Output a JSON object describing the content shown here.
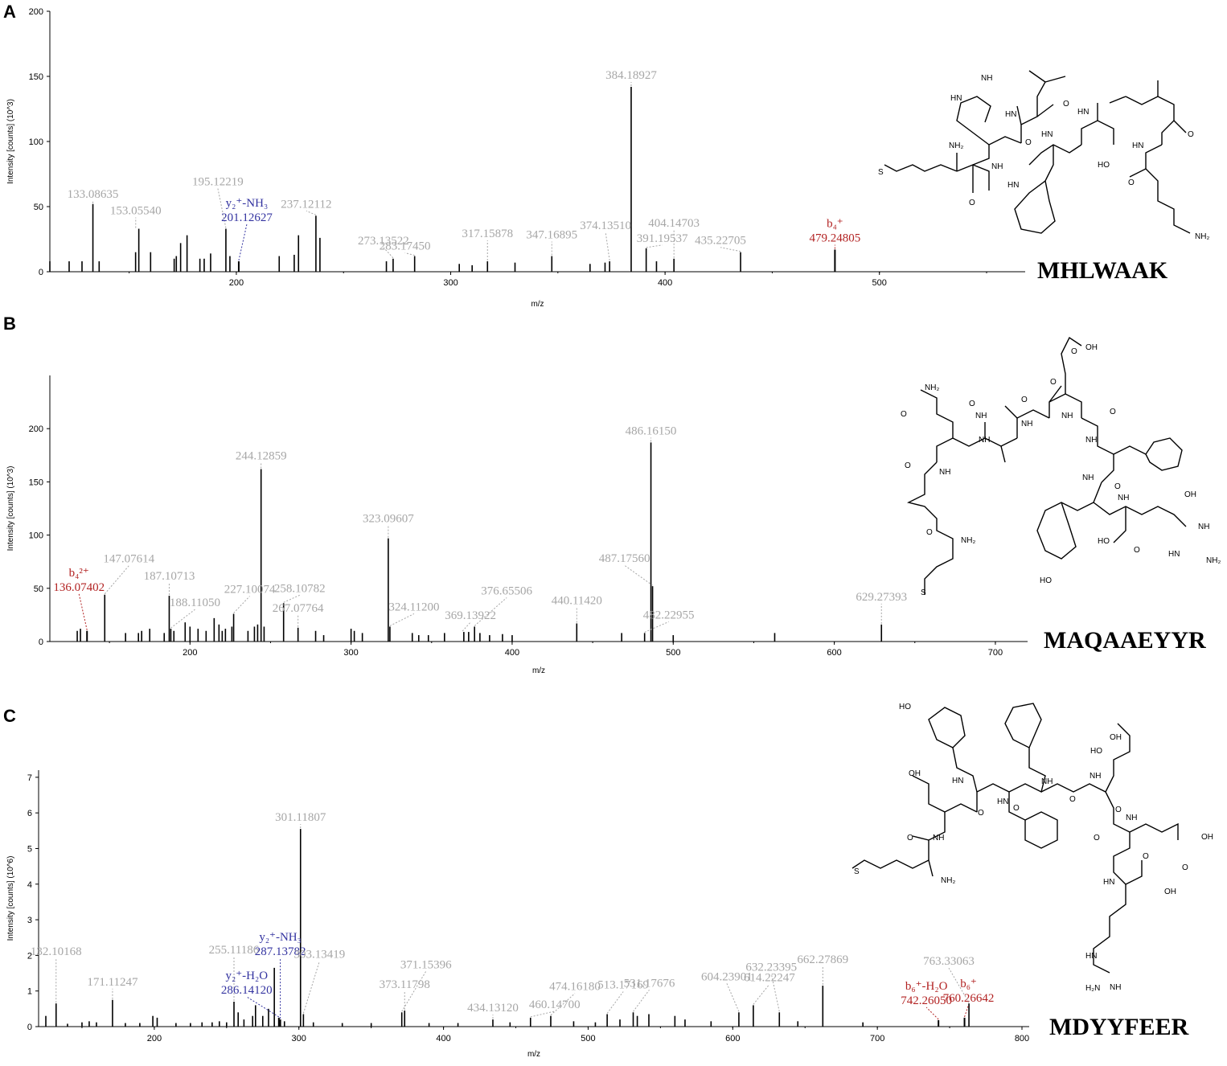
{
  "chart_data": [
    {
      "type": "bar",
      "panel": "A",
      "peptide": "MHLWAAK",
      "ylabel": "Intensity [counts] (10^3)",
      "xlabel": "m/z",
      "xlim": [
        113,
        568
      ],
      "ylim": [
        0,
        200
      ],
      "xticks": [
        "200",
        "300",
        "400",
        "500"
      ],
      "yticks": [
        "0",
        "50",
        "100",
        "150",
        "200"
      ],
      "peaks": [
        [
          113,
          8
        ],
        [
          122,
          8
        ],
        [
          128,
          8
        ],
        [
          133.08635,
          52
        ],
        [
          136,
          8
        ],
        [
          153,
          15
        ],
        [
          154.5,
          33
        ],
        [
          160,
          15
        ],
        [
          171,
          10
        ],
        [
          172,
          12
        ],
        [
          174,
          22
        ],
        [
          177,
          28
        ],
        [
          183,
          10
        ],
        [
          185,
          10
        ],
        [
          188,
          14
        ],
        [
          195.12219,
          33
        ],
        [
          197,
          12
        ],
        [
          201.12627,
          8
        ],
        [
          220,
          12
        ],
        [
          227,
          13
        ],
        [
          229,
          28
        ],
        [
          237.12112,
          43
        ],
        [
          239,
          26
        ],
        [
          270,
          8
        ],
        [
          273.13522,
          10
        ],
        [
          283.1745,
          12
        ],
        [
          304,
          6
        ],
        [
          310,
          5
        ],
        [
          317.15878,
          8
        ],
        [
          330,
          7
        ],
        [
          347.16895,
          12
        ],
        [
          365,
          6
        ],
        [
          372,
          7
        ],
        [
          374.1351,
          8
        ],
        [
          384.18927,
          142
        ],
        [
          391.19537,
          18
        ],
        [
          396,
          8
        ],
        [
          404.14703,
          10
        ],
        [
          435.22705,
          15
        ],
        [
          479.24805,
          17
        ]
      ],
      "annotations": [
        {
          "x": 133.08635,
          "y": 52,
          "text": "133.08635",
          "color": "#a6a6a6"
        },
        {
          "x": 153.0554,
          "y": 33,
          "text": "153.05540",
          "color": "#a6a6a6"
        },
        {
          "x": 195.12219,
          "y": 33,
          "text": "195.12219",
          "color": "#a6a6a6"
        },
        {
          "x": 201.12627,
          "y": 8,
          "text": "201.12627",
          "sub": "y₂⁺-NH₃",
          "color": "#3333a0"
        },
        {
          "x": 237.12112,
          "y": 43,
          "text": "237.12112",
          "color": "#a6a6a6"
        },
        {
          "x": 273.13522,
          "y": 10,
          "text": "273.13522",
          "color": "#a6a6a6"
        },
        {
          "x": 283.1745,
          "y": 12,
          "text": "283.17450",
          "color": "#a6a6a6"
        },
        {
          "x": 317.15878,
          "y": 8,
          "text": "317.15878",
          "color": "#a6a6a6"
        },
        {
          "x": 347.16895,
          "y": 12,
          "text": "347.16895",
          "color": "#a6a6a6"
        },
        {
          "x": 374.1351,
          "y": 8,
          "text": "374.13510",
          "color": "#a6a6a6"
        },
        {
          "x": 384.18927,
          "y": 142,
          "text": "384.18927",
          "color": "#a6a6a6"
        },
        {
          "x": 391.19537,
          "y": 18,
          "text": "391.19537",
          "color": "#a6a6a6"
        },
        {
          "x": 404.14703,
          "y": 10,
          "text": "404.14703",
          "color": "#a6a6a6"
        },
        {
          "x": 435.22705,
          "y": 15,
          "text": "435.22705",
          "color": "#a6a6a6"
        },
        {
          "x": 479.24805,
          "y": 17,
          "text": "479.24805",
          "sub": "b₄⁺",
          "color": "#b22222"
        }
      ]
    },
    {
      "type": "bar",
      "panel": "B",
      "peptide": "MAQAAEYYR",
      "ylabel": "Intensity [counts] (10^3)",
      "xlabel": "m/z",
      "xlim": [
        113,
        720
      ],
      "ylim": [
        0,
        250
      ],
      "xticks": [
        "200",
        "300",
        "400",
        "500",
        "600",
        "700"
      ],
      "yticks": [
        "0",
        "50",
        "100",
        "150",
        "200"
      ],
      "peaks": [
        [
          130,
          10
        ],
        [
          132,
          12
        ],
        [
          136.07402,
          10
        ],
        [
          147.07614,
          44
        ],
        [
          160,
          8
        ],
        [
          168,
          8
        ],
        [
          170,
          10
        ],
        [
          175,
          12
        ],
        [
          184,
          8
        ],
        [
          187.10713,
          43
        ],
        [
          188.1105,
          12
        ],
        [
          190,
          10
        ],
        [
          197,
          18
        ],
        [
          200,
          14
        ],
        [
          205,
          12
        ],
        [
          210,
          10
        ],
        [
          215,
          22
        ],
        [
          218,
          16
        ],
        [
          220,
          10
        ],
        [
          222,
          12
        ],
        [
          226,
          14
        ],
        [
          227.10074,
          26
        ],
        [
          236,
          10
        ],
        [
          240,
          14
        ],
        [
          242,
          16
        ],
        [
          244.12859,
          162
        ],
        [
          246,
          14
        ],
        [
          258.10782,
          36
        ],
        [
          267.07764,
          13
        ],
        [
          278,
          10
        ],
        [
          283,
          6
        ],
        [
          300,
          12
        ],
        [
          302,
          10
        ],
        [
          307,
          8
        ],
        [
          323.09607,
          97
        ],
        [
          324.112,
          14
        ],
        [
          338,
          8
        ],
        [
          342,
          6
        ],
        [
          348,
          6
        ],
        [
          358,
          8
        ],
        [
          370,
          9
        ],
        [
          373,
          9
        ],
        [
          376.65506,
          14
        ],
        [
          380,
          8
        ],
        [
          386,
          6
        ],
        [
          394,
          7
        ],
        [
          400,
          6
        ],
        [
          440.1142,
          17
        ],
        [
          468,
          8
        ],
        [
          482.22955,
          8
        ],
        [
          486.1615,
          187
        ],
        [
          487.1756,
          52
        ],
        [
          500,
          6
        ],
        [
          563,
          8
        ],
        [
          629.27393,
          16
        ]
      ],
      "annotations": [
        {
          "x": 136.07402,
          "y": 10,
          "text": "136.07402",
          "sub": "b₄²⁺",
          "color": "#b22222"
        },
        {
          "x": 147.07614,
          "y": 44,
          "text": "147.07614",
          "color": "#a6a6a6"
        },
        {
          "x": 187.10713,
          "y": 43,
          "text": "187.10713",
          "color": "#a6a6a6"
        },
        {
          "x": 188.1105,
          "y": 12,
          "text": "188.11050",
          "color": "#a6a6a6"
        },
        {
          "x": 227.10074,
          "y": 26,
          "text": "227.10074",
          "color": "#a6a6a6"
        },
        {
          "x": 244.12859,
          "y": 162,
          "text": "244.12859",
          "color": "#a6a6a6"
        },
        {
          "x": 258.10782,
          "y": 36,
          "text": "258.10782",
          "color": "#a6a6a6"
        },
        {
          "x": 267.07764,
          "y": 13,
          "text": "267.07764",
          "color": "#a6a6a6"
        },
        {
          "x": 323.09607,
          "y": 97,
          "text": "323.09607",
          "color": "#a6a6a6"
        },
        {
          "x": 324.112,
          "y": 14,
          "text": "324.11200",
          "color": "#a6a6a6"
        },
        {
          "x": 369.13922,
          "y": 9,
          "text": "369.13922",
          "color": "#a6a6a6"
        },
        {
          "x": 376.65506,
          "y": 14,
          "text": "376.65506",
          "color": "#a6a6a6"
        },
        {
          "x": 440.1142,
          "y": 17,
          "text": "440.11420",
          "color": "#a6a6a6"
        },
        {
          "x": 482.22955,
          "y": 8,
          "text": "482.22955",
          "color": "#a6a6a6"
        },
        {
          "x": 486.1615,
          "y": 187,
          "text": "486.16150",
          "color": "#a6a6a6"
        },
        {
          "x": 487.1756,
          "y": 52,
          "text": "487.17560",
          "color": "#a6a6a6"
        },
        {
          "x": 629.27393,
          "y": 16,
          "text": "629.27393",
          "color": "#a6a6a6"
        }
      ]
    },
    {
      "type": "bar",
      "panel": "C",
      "peptide": "MDYYFEER",
      "ylabel": "Intensity [counts] (10^6)",
      "xlabel": "m/z",
      "xlim": [
        120,
        805
      ],
      "ylim": [
        0,
        7.2
      ],
      "xticks": [
        "200",
        "300",
        "400",
        "500",
        "600",
        "700",
        "800"
      ],
      "yticks": [
        "0",
        "1",
        "2",
        "3",
        "4",
        "5",
        "6",
        "7"
      ],
      "peaks": [
        [
          125,
          0.3
        ],
        [
          132.10168,
          0.65
        ],
        [
          140,
          0.08
        ],
        [
          150,
          0.12
        ],
        [
          155,
          0.15
        ],
        [
          160,
          0.12
        ],
        [
          171.11247,
          0.75
        ],
        [
          180,
          0.1
        ],
        [
          190,
          0.1
        ],
        [
          199,
          0.3
        ],
        [
          202,
          0.25
        ],
        [
          215,
          0.1
        ],
        [
          225,
          0.1
        ],
        [
          233,
          0.12
        ],
        [
          240,
          0.12
        ],
        [
          245,
          0.15
        ],
        [
          250,
          0.12
        ],
        [
          255.11186,
          0.7
        ],
        [
          258,
          0.4
        ],
        [
          262,
          0.2
        ],
        [
          268,
          0.3
        ],
        [
          270,
          0.6
        ],
        [
          275,
          0.3
        ],
        [
          279,
          0.5
        ],
        [
          283,
          1.65
        ],
        [
          286.1412,
          0.25
        ],
        [
          287.13782,
          0.2
        ],
        [
          290,
          0.15
        ],
        [
          301.11807,
          5.55
        ],
        [
          303.13419,
          0.35
        ],
        [
          310,
          0.12
        ],
        [
          330,
          0.1
        ],
        [
          350,
          0.1
        ],
        [
          371.15396,
          0.4
        ],
        [
          373.11798,
          0.45
        ],
        [
          390,
          0.1
        ],
        [
          410,
          0.1
        ],
        [
          434.1312,
          0.2
        ],
        [
          446,
          0.12
        ],
        [
          460.147,
          0.25
        ],
        [
          474.1618,
          0.3
        ],
        [
          490,
          0.15
        ],
        [
          505,
          0.12
        ],
        [
          513.17169,
          0.35
        ],
        [
          522,
          0.2
        ],
        [
          531.17676,
          0.4
        ],
        [
          534,
          0.3
        ],
        [
          542,
          0.35
        ],
        [
          560,
          0.3
        ],
        [
          567,
          0.2
        ],
        [
          585,
          0.15
        ],
        [
          604.23901,
          0.4
        ],
        [
          614.22247,
          0.6
        ],
        [
          632.23395,
          0.4
        ],
        [
          645,
          0.15
        ],
        [
          662.27869,
          1.15
        ],
        [
          690,
          0.12
        ],
        [
          742.2605,
          0.18
        ],
        [
          760.26642,
          0.25
        ],
        [
          763.33063,
          0.65
        ]
      ],
      "annotations": [
        {
          "x": 132.10168,
          "y": 0.65,
          "text": "132.10168",
          "color": "#a6a6a6"
        },
        {
          "x": 171.11247,
          "y": 0.75,
          "text": "171.11247",
          "color": "#a6a6a6"
        },
        {
          "x": 255.11186,
          "y": 0.7,
          "text": "255.11186",
          "color": "#a6a6a6"
        },
        {
          "x": 286.1412,
          "y": 0.25,
          "text": "286.14120",
          "sub": "y₂⁺-H₂O",
          "color": "#3333a0"
        },
        {
          "x": 287.13782,
          "y": 0.2,
          "text": "287.13782",
          "sub": "y₂⁺-NH₃",
          "color": "#3333a0"
        },
        {
          "x": 301.11807,
          "y": 5.55,
          "text": "301.11807",
          "color": "#a6a6a6"
        },
        {
          "x": 303.13419,
          "y": 0.35,
          "text": "303.13419",
          "color": "#a6a6a6"
        },
        {
          "x": 371.15396,
          "y": 0.4,
          "text": "371.15396",
          "color": "#a6a6a6"
        },
        {
          "x": 373.11798,
          "y": 0.45,
          "text": "373.11798",
          "color": "#a6a6a6"
        },
        {
          "x": 434.1312,
          "y": 0.2,
          "text": "434.13120",
          "color": "#a6a6a6"
        },
        {
          "x": 460.147,
          "y": 0.25,
          "text": "460.14700",
          "color": "#a6a6a6"
        },
        {
          "x": 474.1618,
          "y": 0.3,
          "text": "474.16180",
          "color": "#a6a6a6"
        },
        {
          "x": 513.17169,
          "y": 0.35,
          "text": "513.17169",
          "color": "#a6a6a6"
        },
        {
          "x": 531.17676,
          "y": 0.4,
          "text": "531.17676",
          "color": "#a6a6a6"
        },
        {
          "x": 604.23901,
          "y": 0.4,
          "text": "604.23901",
          "color": "#a6a6a6"
        },
        {
          "x": 614.22247,
          "y": 0.6,
          "text": "614.22247",
          "color": "#a6a6a6"
        },
        {
          "x": 632.23395,
          "y": 0.4,
          "text": "632.23395",
          "color": "#a6a6a6"
        },
        {
          "x": 662.27869,
          "y": 1.15,
          "text": "662.27869",
          "color": "#a6a6a6"
        },
        {
          "x": 742.2605,
          "y": 0.18,
          "text": "742.26050",
          "sub": "b₆⁺-H₂O",
          "color": "#b22222"
        },
        {
          "x": 760.26642,
          "y": 0.25,
          "text": "760.26642",
          "sub": "b₆⁺",
          "color": "#b22222"
        },
        {
          "x": 763.33063,
          "y": 0.65,
          "text": "763.33063",
          "color": "#a6a6a6"
        }
      ]
    }
  ],
  "molecule_labels": {
    "A": [
      "NH",
      "HN",
      "NH₂",
      "NH",
      "HN",
      "O",
      "HN",
      "S",
      "HN",
      "HO",
      "O",
      "NH₂",
      "HN",
      "O",
      "O",
      "O",
      "O"
    ],
    "B": [
      "OH",
      "NH₂",
      "NH",
      "NH",
      "NH",
      "NH",
      "NH₂",
      "NH",
      "OH",
      "HO",
      "NH",
      "NH₂",
      "HN",
      "HO",
      "S",
      "O",
      "O",
      "O",
      "O",
      "O",
      "O",
      "O",
      "O"
    ],
    "C": [
      "HO",
      "OH",
      "HN",
      "HN",
      "NH",
      "NH",
      "NH",
      "OH",
      "OH",
      "HN",
      "OH",
      "NH₂",
      "HN",
      "H₂N",
      "NH",
      "S",
      "HO",
      "O",
      "O",
      "O",
      "O",
      "O",
      "O",
      "O",
      "O",
      "O"
    ]
  }
}
